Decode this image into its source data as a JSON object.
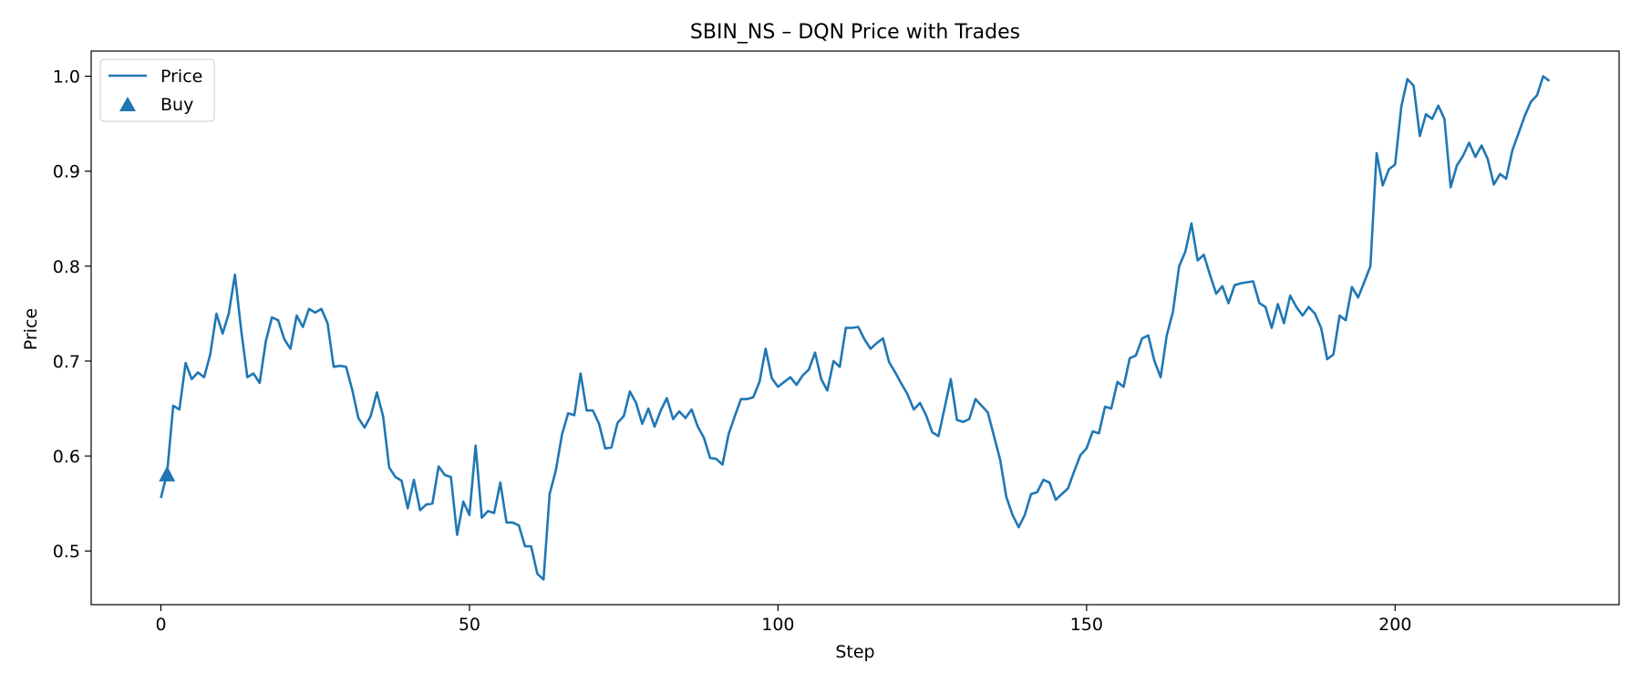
{
  "chart_data": {
    "type": "line",
    "title": "SBIN_NS – DQN Price with Trades",
    "xlabel": "Step",
    "ylabel": "Price",
    "xlim": [
      -11.3,
      236.3
    ],
    "ylim": [
      0.4435,
      1.0265
    ],
    "xticks": [
      0,
      50,
      100,
      150,
      200
    ],
    "xtick_labels": [
      "0",
      "50",
      "100",
      "150",
      "200"
    ],
    "yticks": [
      0.5,
      0.6,
      0.7,
      0.8,
      0.9,
      1.0
    ],
    "ytick_labels": [
      "0.5",
      "0.6",
      "0.7",
      "0.8",
      "0.9",
      "1.0"
    ],
    "grid": false,
    "legend_position": "top-left",
    "legend": [
      "Price",
      "Buy"
    ],
    "series": [
      {
        "name": "Price",
        "color": "#1f77b4",
        "x_start": 0,
        "x_step": 1,
        "values": [
          0.556,
          0.582,
          0.653,
          0.649,
          0.698,
          0.681,
          0.688,
          0.683,
          0.707,
          0.75,
          0.729,
          0.75,
          0.791,
          0.733,
          0.683,
          0.687,
          0.677,
          0.721,
          0.746,
          0.743,
          0.723,
          0.713,
          0.748,
          0.736,
          0.755,
          0.751,
          0.755,
          0.74,
          0.694,
          0.695,
          0.694,
          0.67,
          0.64,
          0.63,
          0.642,
          0.667,
          0.642,
          0.588,
          0.578,
          0.574,
          0.545,
          0.575,
          0.543,
          0.549,
          0.55,
          0.589,
          0.58,
          0.578,
          0.517,
          0.552,
          0.538,
          0.611,
          0.535,
          0.542,
          0.54,
          0.572,
          0.53,
          0.53,
          0.527,
          0.505,
          0.505,
          0.476,
          0.47,
          0.56,
          0.585,
          0.623,
          0.645,
          0.643,
          0.687,
          0.648,
          0.648,
          0.634,
          0.608,
          0.609,
          0.635,
          0.642,
          0.668,
          0.656,
          0.634,
          0.65,
          0.631,
          0.648,
          0.661,
          0.639,
          0.647,
          0.64,
          0.649,
          0.631,
          0.619,
          0.598,
          0.597,
          0.591,
          0.623,
          0.642,
          0.66,
          0.66,
          0.662,
          0.678,
          0.713,
          0.682,
          0.673,
          0.678,
          0.683,
          0.675,
          0.685,
          0.691,
          0.709,
          0.681,
          0.669,
          0.7,
          0.694,
          0.735,
          0.735,
          0.736,
          0.723,
          0.713,
          0.719,
          0.724,
          0.699,
          0.688,
          0.676,
          0.665,
          0.649,
          0.656,
          0.643,
          0.625,
          0.621,
          0.651,
          0.681,
          0.638,
          0.636,
          0.639,
          0.66,
          0.653,
          0.646,
          0.621,
          0.596,
          0.557,
          0.538,
          0.525,
          0.538,
          0.56,
          0.562,
          0.575,
          0.572,
          0.554,
          0.56,
          0.566,
          0.584,
          0.601,
          0.608,
          0.626,
          0.624,
          0.652,
          0.65,
          0.678,
          0.673,
          0.703,
          0.706,
          0.724,
          0.727,
          0.7,
          0.683,
          0.727,
          0.752,
          0.8,
          0.815,
          0.845,
          0.806,
          0.812,
          0.791,
          0.771,
          0.779,
          0.761,
          0.78,
          0.782,
          0.783,
          0.784,
          0.761,
          0.757,
          0.735,
          0.76,
          0.74,
          0.769,
          0.757,
          0.748,
          0.757,
          0.75,
          0.735,
          0.702,
          0.707,
          0.748,
          0.743,
          0.778,
          0.767,
          0.783,
          0.8,
          0.919,
          0.885,
          0.902,
          0.907,
          0.968,
          0.997,
          0.99,
          0.937,
          0.96,
          0.955,
          0.969,
          0.955,
          0.883,
          0.906,
          0.916,
          0.93,
          0.915,
          0.927,
          0.913,
          0.886,
          0.897,
          0.892,
          0.922,
          0.94,
          0.958,
          0.973,
          0.98,
          1.0,
          0.995
        ]
      },
      {
        "name": "Buy",
        "color": "#1f77b4",
        "type": "scatter",
        "marker": "triangle-up",
        "x": [
          1
        ],
        "y": [
          0.58
        ]
      }
    ]
  }
}
